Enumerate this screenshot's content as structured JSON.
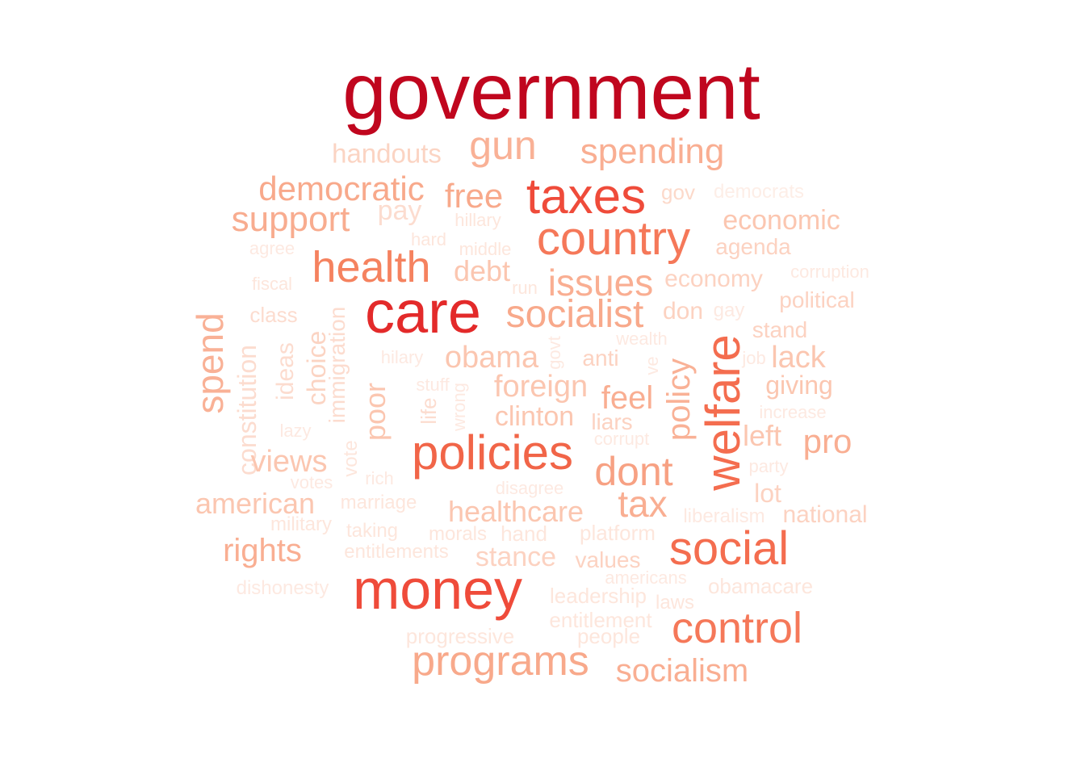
{
  "wordcloud": {
    "words": [
      {
        "id": "government",
        "text": "government",
        "color": "#c0061e"
      },
      {
        "id": "handouts",
        "text": "handouts",
        "color": "#fbd4c3"
      },
      {
        "id": "gun",
        "text": "gun",
        "color": "#f9b196"
      },
      {
        "id": "spending",
        "text": "spending",
        "color": "#f9ae92"
      },
      {
        "id": "democratic",
        "text": "democratic",
        "color": "#f8a98b"
      },
      {
        "id": "free",
        "text": "free",
        "color": "#f8a98b"
      },
      {
        "id": "taxes",
        "text": "taxes",
        "color": "#ef4b3a"
      },
      {
        "id": "gov",
        "text": "gov",
        "color": "#fcd9ca"
      },
      {
        "id": "democrats",
        "text": "democrats",
        "color": "#fdeee7"
      },
      {
        "id": "support",
        "text": "support",
        "color": "#f8ac8f"
      },
      {
        "id": "pay",
        "text": "pay",
        "color": "#fcdccf"
      },
      {
        "id": "hillary",
        "text": "hillary",
        "color": "#fde6dc"
      },
      {
        "id": "country",
        "text": "country",
        "color": "#f57859"
      },
      {
        "id": "economic",
        "text": "economic",
        "color": "#fbc6b0"
      },
      {
        "id": "agree",
        "text": "agree",
        "color": "#fde9e1"
      },
      {
        "id": "hard",
        "text": "hard",
        "color": "#fde6dc"
      },
      {
        "id": "middle",
        "text": "middle",
        "color": "#fde6dc"
      },
      {
        "id": "agenda",
        "text": "agenda",
        "color": "#fcd2c1"
      },
      {
        "id": "health",
        "text": "health",
        "color": "#f5825f"
      },
      {
        "id": "debt",
        "text": "debt",
        "color": "#fbc6b0"
      },
      {
        "id": "corruption",
        "text": "corruption",
        "color": "#fde9e1"
      },
      {
        "id": "fiscal",
        "text": "fiscal",
        "color": "#fde6dc"
      },
      {
        "id": "run",
        "text": "run",
        "color": "#fde6dc"
      },
      {
        "id": "issues",
        "text": "issues",
        "color": "#f9ae92"
      },
      {
        "id": "economy",
        "text": "economy",
        "color": "#fcd2c1"
      },
      {
        "id": "care",
        "text": "care",
        "color": "#e32a2a"
      },
      {
        "id": "political",
        "text": "political",
        "color": "#fcd2c1"
      },
      {
        "id": "class",
        "text": "class",
        "color": "#fcdccf"
      },
      {
        "id": "socialist",
        "text": "socialist",
        "color": "#f8a98b"
      },
      {
        "id": "don",
        "text": "don",
        "color": "#fcd2c1"
      },
      {
        "id": "gay",
        "text": "gay",
        "color": "#fde9e1"
      },
      {
        "id": "spend",
        "text": "spend",
        "color": "#f9b196"
      },
      {
        "id": "constitution",
        "text": "constitution",
        "color": "#fcdccf"
      },
      {
        "id": "ideas",
        "text": "ideas",
        "color": "#fcdccf"
      },
      {
        "id": "choice",
        "text": "choice",
        "color": "#fbd4c3"
      },
      {
        "id": "immigration",
        "text": "immigration",
        "color": "#fcdccf"
      },
      {
        "id": "stand",
        "text": "stand",
        "color": "#fcd2c1"
      },
      {
        "id": "wealth",
        "text": "wealth",
        "color": "#fde9e1"
      },
      {
        "id": "hilary",
        "text": "hilary",
        "color": "#fde9e1"
      },
      {
        "id": "obama",
        "text": "obama",
        "color": "#fbc6b0"
      },
      {
        "id": "govt",
        "text": "govt",
        "color": "#fde9e1"
      },
      {
        "id": "anti",
        "text": "anti",
        "color": "#fcd2c1"
      },
      {
        "id": "ve",
        "text": "ve",
        "color": "#fde9e1"
      },
      {
        "id": "policy",
        "text": "policy",
        "color": "#f9b196"
      },
      {
        "id": "welfare",
        "text": "welfare",
        "color": "#f46d4f"
      },
      {
        "id": "job",
        "text": "job",
        "color": "#fde9e1"
      },
      {
        "id": "lack",
        "text": "lack",
        "color": "#fbc6b0"
      },
      {
        "id": "stuff",
        "text": "stuff",
        "color": "#fde9e1"
      },
      {
        "id": "foreign",
        "text": "foreign",
        "color": "#fbc6b0"
      },
      {
        "id": "giving",
        "text": "giving",
        "color": "#fbc6b0"
      },
      {
        "id": "poor",
        "text": "poor",
        "color": "#fbc6b0"
      },
      {
        "id": "life",
        "text": "life",
        "color": "#fcdccf"
      },
      {
        "id": "wrong",
        "text": "wrong",
        "color": "#fde9e1"
      },
      {
        "id": "feel",
        "text": "feel",
        "color": "#f9ae92"
      },
      {
        "id": "clinton",
        "text": "clinton",
        "color": "#fbc6b0"
      },
      {
        "id": "increase",
        "text": "increase",
        "color": "#fde9e1"
      },
      {
        "id": "liars",
        "text": "liars",
        "color": "#fcd2c1"
      },
      {
        "id": "lazy",
        "text": "lazy",
        "color": "#fde9e1"
      },
      {
        "id": "corrupt",
        "text": "corrupt",
        "color": "#fde9e1"
      },
      {
        "id": "left",
        "text": "left",
        "color": "#fbc6b0"
      },
      {
        "id": "vote",
        "text": "vote",
        "color": "#fde6dc"
      },
      {
        "id": "policies",
        "text": "policies",
        "color": "#f16548"
      },
      {
        "id": "pro",
        "text": "pro",
        "color": "#f9ae92"
      },
      {
        "id": "views",
        "text": "views",
        "color": "#fbc6b0"
      },
      {
        "id": "dont",
        "text": "dont",
        "color": "#f7a183"
      },
      {
        "id": "party",
        "text": "party",
        "color": "#fde9e1"
      },
      {
        "id": "votes",
        "text": "votes",
        "color": "#fde9e1"
      },
      {
        "id": "rich",
        "text": "rich",
        "color": "#fde9e1"
      },
      {
        "id": "disagree",
        "text": "disagree",
        "color": "#fde9e1"
      },
      {
        "id": "lot",
        "text": "lot",
        "color": "#fcd2c1"
      },
      {
        "id": "american",
        "text": "american",
        "color": "#fbc6b0"
      },
      {
        "id": "marriage",
        "text": "marriage",
        "color": "#fde6dc"
      },
      {
        "id": "tax",
        "text": "tax",
        "color": "#f9ae92"
      },
      {
        "id": "healthcare",
        "text": "healthcare",
        "color": "#fbc6b0"
      },
      {
        "id": "liberalism",
        "text": "liberalism",
        "color": "#fde9e1"
      },
      {
        "id": "national",
        "text": "national",
        "color": "#fcd2c1"
      },
      {
        "id": "military",
        "text": "military",
        "color": "#fde6dc"
      },
      {
        "id": "taking",
        "text": "taking",
        "color": "#fde6dc"
      },
      {
        "id": "morals",
        "text": "morals",
        "color": "#fde6dc"
      },
      {
        "id": "hand",
        "text": "hand",
        "color": "#fde6dc"
      },
      {
        "id": "platform",
        "text": "platform",
        "color": "#fde6dc"
      },
      {
        "id": "rights",
        "text": "rights",
        "color": "#f9ae92"
      },
      {
        "id": "entitlements",
        "text": "entitlements",
        "color": "#fde6dc"
      },
      {
        "id": "stance",
        "text": "stance",
        "color": "#fcd2c1"
      },
      {
        "id": "values",
        "text": "values",
        "color": "#fcd2c1"
      },
      {
        "id": "social",
        "text": "social",
        "color": "#f46d4f"
      },
      {
        "id": "americans",
        "text": "americans",
        "color": "#fde9e1"
      },
      {
        "id": "dishonesty",
        "text": "dishonesty",
        "color": "#fde9e1"
      },
      {
        "id": "money",
        "text": "money",
        "color": "#ef4b3a"
      },
      {
        "id": "obamacare",
        "text": "obamacare",
        "color": "#fde6dc"
      },
      {
        "id": "leadership",
        "text": "leadership",
        "color": "#fde6dc"
      },
      {
        "id": "laws",
        "text": "laws",
        "color": "#fde6dc"
      },
      {
        "id": "entitlement",
        "text": "entitlement",
        "color": "#fde6dc"
      },
      {
        "id": "control",
        "text": "control",
        "color": "#f57859"
      },
      {
        "id": "progressive",
        "text": "progressive",
        "color": "#fde6dc"
      },
      {
        "id": "people",
        "text": "people",
        "color": "#fde6dc"
      },
      {
        "id": "programs",
        "text": "programs",
        "color": "#f8a98b"
      },
      {
        "id": "socialism",
        "text": "socialism",
        "color": "#f9ae92"
      }
    ]
  }
}
